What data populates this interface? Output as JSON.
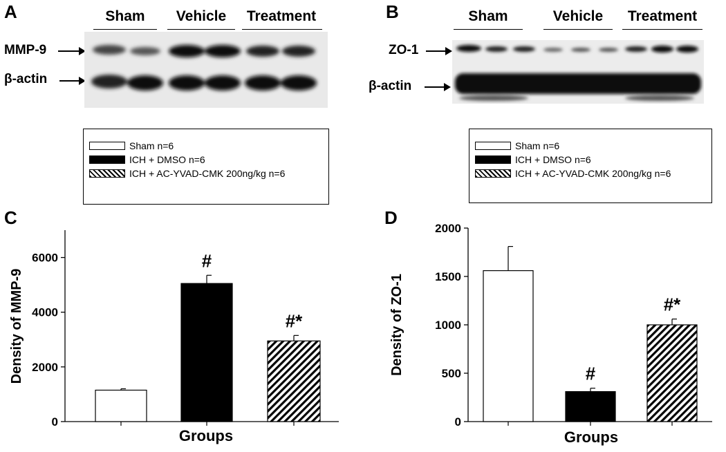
{
  "panel_a": {
    "letter": "A",
    "groups": [
      "Sham",
      "Vehicle",
      "Treatment"
    ],
    "band_labels": [
      "MMP-9",
      "β-actin"
    ]
  },
  "panel_b": {
    "letter": "B",
    "groups": [
      "Sham",
      "Vehicle",
      "Treatment"
    ],
    "band_labels": [
      "ZO-1",
      "β-actin"
    ]
  },
  "legend": {
    "entries": [
      {
        "label": "Sham n=6",
        "style": "white"
      },
      {
        "label": "ICH + DMSO n=6",
        "style": "black"
      },
      {
        "label": "ICH + AC-YVAD-CMK 200ng/kg n=6",
        "style": "hatched"
      }
    ]
  },
  "colors": {
    "ink": "#000000",
    "background": "#ffffff"
  },
  "chart_data": [
    {
      "panel": "C",
      "type": "bar",
      "xlabel": "Groups",
      "ylabel": "Density of MMP-9",
      "ylim": [
        0,
        7000
      ],
      "yticks": [
        0,
        2000,
        4000,
        6000
      ],
      "categories": [
        "Sham n=6",
        "ICH + DMSO n=6",
        "ICH + AC-YVAD-CMK 200ng/kg n=6"
      ],
      "values": [
        1150,
        5050,
        2950
      ],
      "errors": [
        50,
        300,
        200
      ],
      "fills": [
        "white",
        "black",
        "hatched"
      ],
      "annotations": [
        "",
        "#",
        "#*"
      ]
    },
    {
      "panel": "D",
      "type": "bar",
      "xlabel": "Groups",
      "ylabel": "Density of ZO-1",
      "ylim": [
        0,
        2000
      ],
      "yticks": [
        0,
        500,
        1000,
        1500,
        2000
      ],
      "categories": [
        "Sham n=6",
        "ICH + DMSO n=6",
        "ICH + AC-YVAD-CMK 200ng/kg n=6"
      ],
      "values": [
        1560,
        310,
        1000
      ],
      "errors": [
        250,
        35,
        60
      ],
      "fills": [
        "white",
        "black",
        "hatched"
      ],
      "annotations": [
        "",
        "#",
        "#*"
      ]
    }
  ]
}
